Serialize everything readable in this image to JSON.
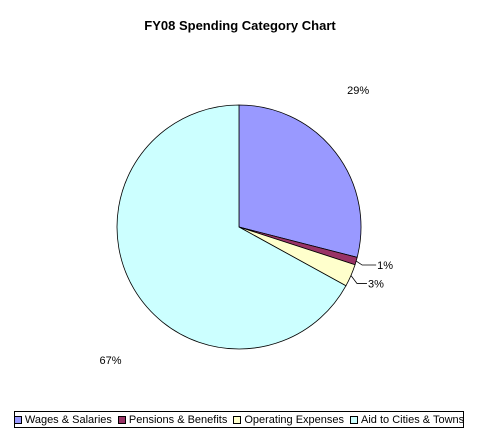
{
  "chart_data": {
    "type": "pie",
    "title": "FY08 Spending Category Chart",
    "slices": [
      {
        "label": "Wages & Salaries",
        "value": 29,
        "display": "29%",
        "color": "#9999ff"
      },
      {
        "label": "Pensions & Benefits",
        "value": 1,
        "display": "1%",
        "color": "#993366"
      },
      {
        "label": "Operating Expenses",
        "value": 3,
        "display": "3%",
        "color": "#ffffcc"
      },
      {
        "label": "Aid to Cities & Towns",
        "value": 67,
        "display": "67%",
        "color": "#ccffff"
      }
    ],
    "legend_position": "bottom"
  }
}
